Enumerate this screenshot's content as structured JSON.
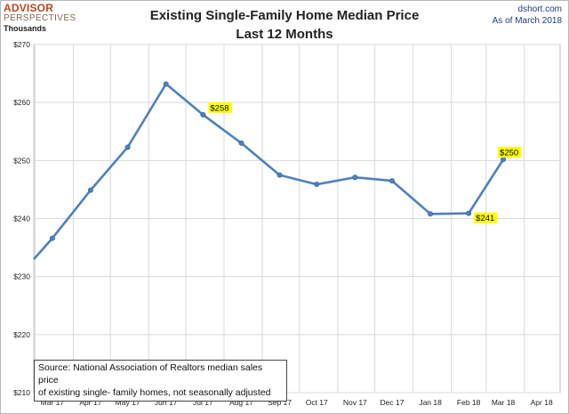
{
  "header": {
    "logo_line1": "ADVISOR",
    "logo_line2": "PERSPECTIVES",
    "title_line1": "Existing Single-Family Home Median Price",
    "title_line2": "Last 12 Months",
    "site": "dshort.com",
    "as_of": "As of March 2018",
    "units": "Thousands"
  },
  "source_note": {
    "line1": "Source: National Association of Realtors median sales price",
    "line2": "of existing single- family homes, not seasonally adjusted"
  },
  "colors": {
    "line": "#4f81bd",
    "grid": "#d9d9d9",
    "label_bg": "#ffff00",
    "logo": "#c2451d"
  },
  "chart_data": {
    "type": "line",
    "title": "Existing Single-Family Home Median Price Last 12 Months",
    "ylabel": "Thousands",
    "ylim": [
      210,
      270
    ],
    "yticks": [
      210,
      220,
      230,
      240,
      250,
      260,
      270
    ],
    "ytick_labels": [
      "$210",
      "$220",
      "$230",
      "$240",
      "$250",
      "$260",
      "$270"
    ],
    "categories": [
      "Mar 17",
      "Apr 17",
      "May 17",
      "Jun 17",
      "Jul 17",
      "Aug 17",
      "Sep 17",
      "Oct 17",
      "Nov 17",
      "Dec 17",
      "Jan 18",
      "Feb 18",
      "Mar 18",
      "Apr 18"
    ],
    "grid": true,
    "series": [
      {
        "points": [
          {
            "x": "2017-02-28",
            "y": 233.0
          },
          {
            "x": "2017-03-15",
            "y": 236.6
          },
          {
            "x": "2017-04-15",
            "y": 244.9
          },
          {
            "x": "2017-05-15",
            "y": 252.3
          },
          {
            "x": "2017-06-15",
            "y": 263.2
          },
          {
            "x": "2017-07-15",
            "y": 257.9
          },
          {
            "x": "2017-08-15",
            "y": 253.0
          },
          {
            "x": "2017-09-15",
            "y": 247.5
          },
          {
            "x": "2017-10-15",
            "y": 245.9
          },
          {
            "x": "2017-11-15",
            "y": 247.1
          },
          {
            "x": "2017-12-15",
            "y": 246.5
          },
          {
            "x": "2018-01-15",
            "y": 240.8
          },
          {
            "x": "2018-02-15",
            "y": 240.9
          },
          {
            "x": "2018-03-15",
            "y": 250.2
          }
        ]
      }
    ],
    "annotations": [
      {
        "text": "$258",
        "x": "2017-07-15"
      },
      {
        "text": "$241",
        "x": "2018-02-15"
      },
      {
        "text": "$250",
        "x": "2018-03-15"
      }
    ]
  }
}
